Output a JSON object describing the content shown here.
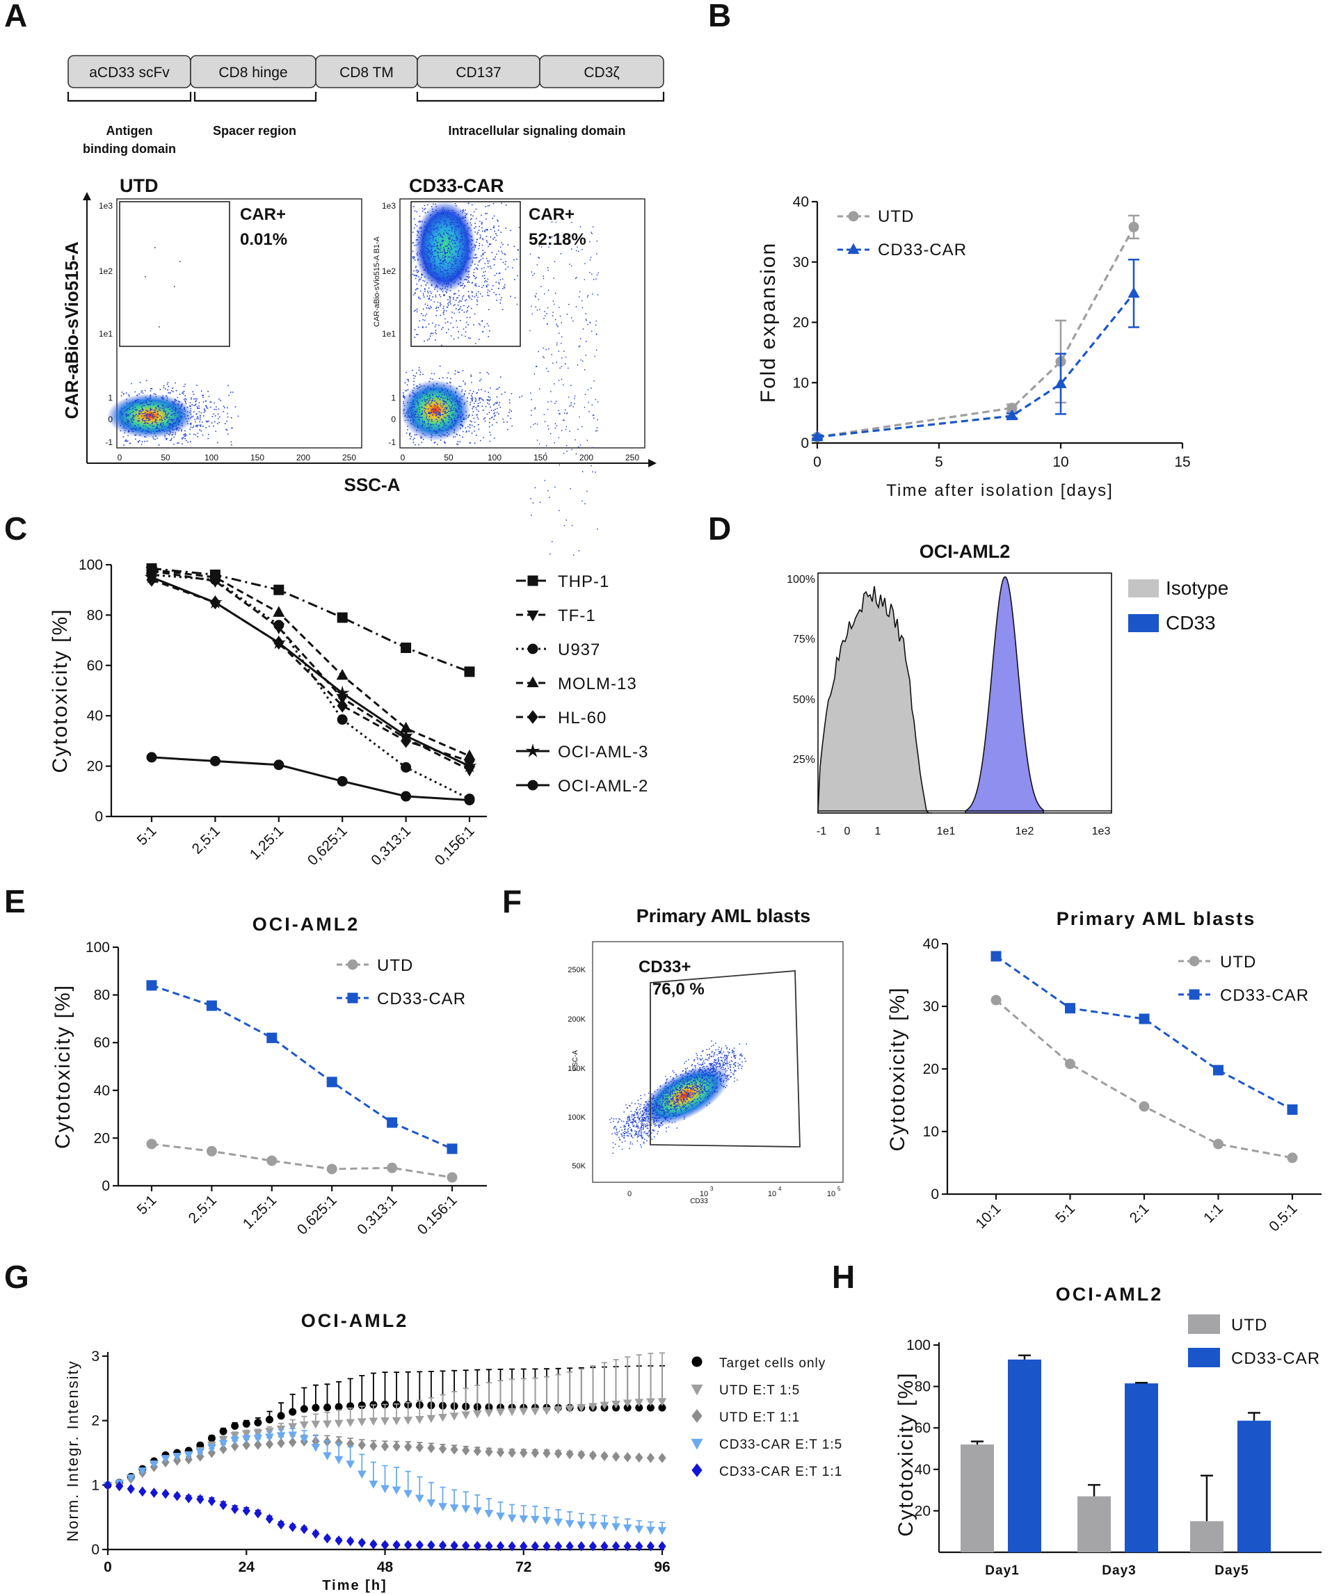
{
  "panel_letters": [
    "A",
    "B",
    "C",
    "D",
    "E",
    "F",
    "G",
    "H"
  ],
  "panel_a": {
    "construct": [
      "aCD33 scFv",
      "CD8 hinge",
      "CD8 TM",
      "CD137",
      "CD3ζ"
    ],
    "domains": [
      "Antigen",
      "binding domain",
      "Spacer region",
      "Intracellular signaling domain"
    ],
    "utd": {
      "title": "UTD",
      "gate_label": "CAR+",
      "gate_value": "0.01%"
    },
    "car": {
      "title": "CD33-CAR",
      "gate_label": "CAR+",
      "gate_value": "52:18%",
      "small_axis": "CAR-aBio-sVio515-A B1-A"
    },
    "ylabel": "CAR-aBio-sVio515-A",
    "xlabel": "SSC-A",
    "yticks": [
      "1e3",
      "1e2",
      "1e1",
      "1",
      "0",
      "-1"
    ],
    "xticks": [
      "0",
      "50",
      "100",
      "150",
      "200",
      "250"
    ]
  },
  "chart_data": [
    {
      "panel": "B",
      "type": "line",
      "xlabel": "Time after isolation [days]",
      "ylabel": "Fold expansion",
      "xlim": [
        0,
        15
      ],
      "ylim": [
        0,
        40
      ],
      "xticks": [
        "0",
        "5",
        "10",
        "15"
      ],
      "yticks": [
        "0",
        "10",
        "20",
        "30",
        "40"
      ],
      "series": [
        {
          "name": "UTD",
          "color": "#9e9e9e",
          "marker": "circle",
          "x": [
            0,
            8,
            10,
            13
          ],
          "values": [
            1,
            5.8,
            13.5,
            35.8
          ],
          "err": [
            0.3,
            0.6,
            6.8,
            1.9
          ]
        },
        {
          "name": "CD33-CAR",
          "color": "#1a56c9",
          "marker": "triangle",
          "x": [
            0,
            8,
            10,
            13
          ],
          "values": [
            1,
            4.5,
            9.8,
            24.8
          ],
          "err": [
            0.3,
            0.4,
            5.0,
            5.6
          ]
        }
      ]
    },
    {
      "panel": "C",
      "type": "line",
      "ylabel": "Cytotoxicity [%]",
      "ylim": [
        0,
        100
      ],
      "categories": [
        "5:1",
        "2,5:1",
        "1,25:1",
        "0,625:1",
        "0,313:1",
        "0,156:1"
      ],
      "yticks": [
        "0",
        "20",
        "40",
        "60",
        "80",
        "100"
      ],
      "series": [
        {
          "name": "THP-1",
          "marker": "square",
          "dash": "14 6 3 6",
          "values": [
            98.5,
            96,
            90,
            79,
            67,
            57.5
          ]
        },
        {
          "name": "TF-1",
          "marker": "triangle-down",
          "dash": "10 6",
          "values": [
            97.5,
            93.5,
            75,
            47,
            31,
            18.5
          ]
        },
        {
          "name": "U937",
          "marker": "circle",
          "dash": "3 5",
          "values": [
            96,
            94,
            76,
            38.5,
            19.5,
            7
          ]
        },
        {
          "name": "MOLM-13",
          "marker": "triangle",
          "dash": "10 6",
          "values": [
            98,
            95,
            81,
            56,
            35,
            24
          ]
        },
        {
          "name": "HL-60",
          "marker": "diamond",
          "dash": "10 6",
          "values": [
            94,
            85,
            69,
            44,
            30,
            22
          ]
        },
        {
          "name": "OCI-AML-3",
          "marker": "star",
          "dash": "",
          "values": [
            95,
            85,
            69,
            49,
            32,
            20
          ]
        },
        {
          "name": "OCI-AML-2",
          "marker": "circle",
          "dash": "",
          "values": [
            23.5,
            22,
            20.5,
            14,
            8,
            6.5
          ]
        }
      ]
    },
    {
      "panel": "D",
      "type": "area",
      "title": "OCI-AML2",
      "xticks": [
        "-1",
        "0",
        "1",
        "1e1",
        "1e2",
        "1e3"
      ],
      "yticks": [
        "25%",
        "50%",
        "75%",
        "100%"
      ],
      "series": [
        {
          "name": "Isotype",
          "color": "#c4c4c4",
          "peak": 0.95
        },
        {
          "name": "CD33",
          "color": "#1a56c9",
          "fill": "#8f8ff0",
          "peak": 1.0
        }
      ]
    },
    {
      "panel": "E",
      "type": "line",
      "title": "OCI-AML2",
      "ylabel": "Cytotoxicity [%]",
      "ylim": [
        0,
        100
      ],
      "categories": [
        "5:1",
        "2.5:1",
        "1.25:1",
        "0.625:1",
        "0.313:1",
        "0.156:1"
      ],
      "yticks": [
        "0",
        "20",
        "40",
        "60",
        "80",
        "100"
      ],
      "series": [
        {
          "name": "UTD",
          "color": "#9e9e9e",
          "marker": "circle",
          "values": [
            17.5,
            14.5,
            10.5,
            7,
            7.5,
            3.5
          ]
        },
        {
          "name": "CD33-CAR",
          "color": "#1a56c9",
          "marker": "square",
          "values": [
            84,
            75.5,
            62,
            43.5,
            26.5,
            15.5
          ]
        }
      ]
    },
    {
      "panel": "F",
      "type": "line",
      "title": "Primary AML blasts",
      "ylabel": "Cytotoxicity [%]",
      "ylim": [
        0,
        40
      ],
      "categories": [
        "10:1",
        "5:1",
        "2:1",
        "1:1",
        "0.5:1"
      ],
      "yticks": [
        "0",
        "10",
        "20",
        "30",
        "40"
      ],
      "series": [
        {
          "name": "UTD",
          "color": "#9e9e9e",
          "marker": "circle",
          "values": [
            31,
            20.8,
            14,
            8,
            5.8
          ]
        },
        {
          "name": "CD33-CAR",
          "color": "#1a56c9",
          "marker": "square",
          "values": [
            38,
            29.7,
            28,
            19.8,
            13.5
          ]
        }
      ]
    },
    {
      "panel": "G",
      "type": "line",
      "title": "OCI-AML2",
      "xlabel": "Time [h]",
      "ylabel": "Norm. Integr. Intensity",
      "xlim": [
        0,
        96
      ],
      "ylim": [
        0,
        3.2
      ],
      "xticks": [
        "0",
        "24",
        "48",
        "72",
        "96"
      ],
      "yticks": [
        "0",
        "1",
        "2",
        "3"
      ],
      "series": [
        {
          "name": "Target cells only",
          "color": "#000000",
          "marker": "circle",
          "keys": [
            [
              0,
              1
            ],
            [
              12,
              1.5
            ],
            [
              24,
              1.95
            ],
            [
              36,
              2.2
            ],
            [
              48,
              2.25
            ],
            [
              72,
              2.2
            ],
            [
              96,
              2.2
            ]
          ],
          "errkeys": [
            [
              0,
              0
            ],
            [
              24,
              0.05
            ],
            [
              36,
              0.35
            ],
            [
              48,
              0.5
            ],
            [
              72,
              0.6
            ],
            [
              96,
              0.65
            ]
          ]
        },
        {
          "name": "UTD E:T 1:5",
          "color": "#9e9e9e",
          "marker": "triangle-down",
          "keys": [
            [
              0,
              1
            ],
            [
              12,
              1.45
            ],
            [
              24,
              1.8
            ],
            [
              36,
              1.95
            ],
            [
              48,
              2.0
            ],
            [
              72,
              2.15
            ],
            [
              96,
              2.3
            ]
          ],
          "errkeys": [
            [
              0,
              0
            ],
            [
              24,
              0.05
            ],
            [
              48,
              0.25
            ],
            [
              72,
              0.5
            ],
            [
              96,
              0.75
            ]
          ]
        },
        {
          "name": "UTD E:T 1:1",
          "color": "#8c8c8c",
          "marker": "diamond",
          "keys": [
            [
              0,
              1
            ],
            [
              12,
              1.38
            ],
            [
              24,
              1.62
            ],
            [
              36,
              1.68
            ],
            [
              48,
              1.6
            ],
            [
              72,
              1.5
            ],
            [
              96,
              1.42
            ]
          ],
          "errkeys": [
            [
              0,
              0
            ],
            [
              30,
              0.1
            ],
            [
              48,
              0.08
            ],
            [
              72,
              0.05
            ],
            [
              96,
              0.02
            ]
          ]
        },
        {
          "name": "CD33-CAR E:T 1:5",
          "color": "#6aaaf0",
          "marker": "triangle-down",
          "keys": [
            [
              0,
              1
            ],
            [
              12,
              1.45
            ],
            [
              24,
              1.72
            ],
            [
              32,
              1.78
            ],
            [
              40,
              1.4
            ],
            [
              48,
              0.95
            ],
            [
              60,
              0.65
            ],
            [
              72,
              0.48
            ],
            [
              84,
              0.38
            ],
            [
              96,
              0.3
            ]
          ],
          "errkeys": [
            [
              0,
              0
            ],
            [
              24,
              0.05
            ],
            [
              32,
              0.1
            ],
            [
              40,
              0.25
            ],
            [
              48,
              0.35
            ],
            [
              72,
              0.2
            ],
            [
              96,
              0.12
            ]
          ]
        },
        {
          "name": "CD33-CAR E:T 1:1",
          "color": "#1414d6",
          "marker": "diamond",
          "keys": [
            [
              0,
              1
            ],
            [
              8,
              0.88
            ],
            [
              16,
              0.78
            ],
            [
              24,
              0.6
            ],
            [
              32,
              0.35
            ],
            [
              40,
              0.14
            ],
            [
              48,
              0.07
            ],
            [
              72,
              0.05
            ],
            [
              96,
              0.05
            ]
          ],
          "errkeys": [
            [
              0,
              0
            ],
            [
              20,
              0.05
            ],
            [
              40,
              0.03
            ],
            [
              96,
              0.01
            ]
          ]
        }
      ]
    },
    {
      "panel": "H",
      "type": "bar",
      "title": "OCI-AML2",
      "ylabel": "Cytotoxicity [%]",
      "ylim": [
        0,
        100
      ],
      "categories": [
        "Day1",
        "Day3",
        "Day5"
      ],
      "yticks": [
        "20",
        "40",
        "60",
        "80",
        "100"
      ],
      "series": [
        {
          "name": "UTD",
          "color": "#a5a5a8",
          "values": [
            52,
            27,
            15
          ],
          "err": [
            1.5,
            5.5,
            22
          ]
        },
        {
          "name": "CD33-CAR",
          "color": "#1a56c9",
          "values": [
            93,
            81.5,
            63.5
          ],
          "err": [
            2,
            0.3,
            3.8
          ]
        }
      ]
    }
  ],
  "panel_f_flow": {
    "gate_label": "CD33+",
    "gate_value": "76,0 %",
    "ylabel": "FSC-A",
    "xlabel": "CD33",
    "yticks": [
      "250K",
      "200K",
      "150K",
      "100K",
      "50K"
    ],
    "xticks": [
      "0",
      "10",
      "10",
      "10",
      "10"
    ],
    "xexps": [
      "3",
      "4",
      "5"
    ]
  }
}
